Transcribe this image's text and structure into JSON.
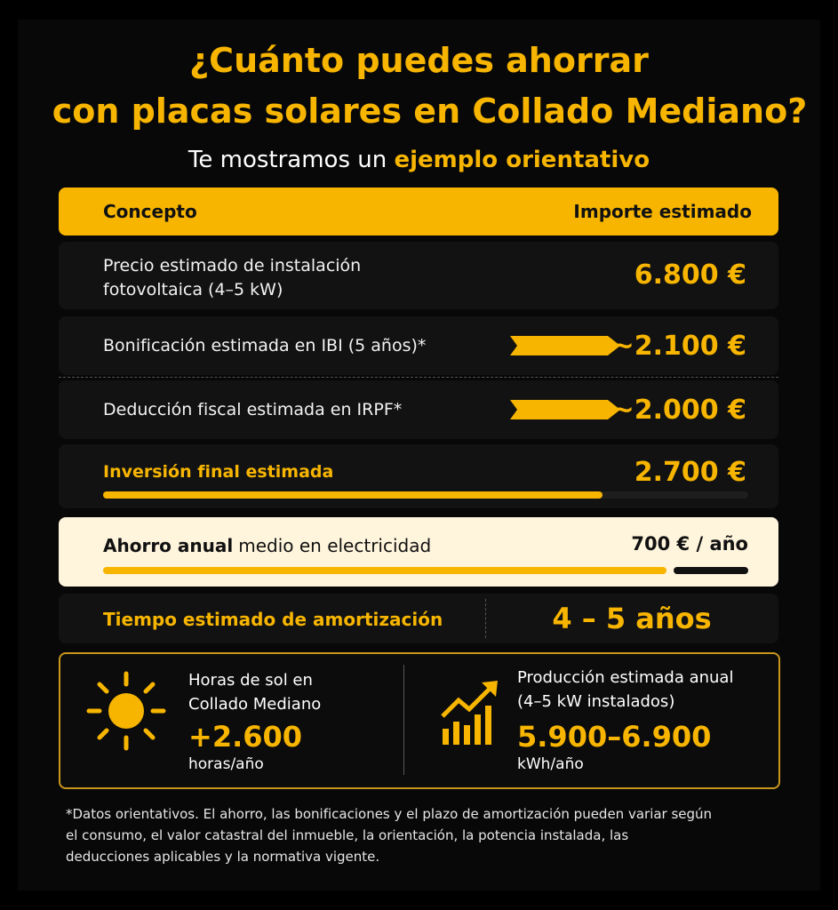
{
  "header": {
    "title_line1": "¿Cuánto puedes ahorrar",
    "title_line2": "con placas solares en Collado Mediano?",
    "subtitle": "Te mostramos un",
    "subtitle_highlight": "ejemplo orientativo"
  },
  "table": {
    "columns": [
      "Concepto",
      "Importe estimado"
    ],
    "rows": [
      [
        "Precio estimado de instalación fotovoltaica (4–5 kW)",
        "6.800 €"
      ],
      [
        "Bonificación estimada en IBI (5 años)*",
        "~2.100 €"
      ],
      [
        "Deducción fiscal estimada en IRPF*",
        "~2.000 €"
      ],
      [
        "Inversión final estimada",
        "2.700 €"
      ]
    ]
  },
  "savings": {
    "label_bold": "Ahorro anual",
    "label": "medio en electricidad",
    "value": "700 € / año"
  },
  "payback": {
    "label": "Tiempo estimado de amortización",
    "value": "4 – 5 años"
  },
  "stats": [
    {
      "label": "Horas de sol en Collado Mediano",
      "value": "+2.600",
      "unit": "horas/año"
    },
    {
      "label": "Producción estimada anual",
      "sublabel": "(4–5 kW instalados)",
      "value": "5.900–6.900",
      "unit": "kWh/año"
    }
  ],
  "footnote": "*Datos orientativos. El ahorro, las bonificaciones y el plazo de amortización pueden variar según el consumo, el valor catastral del inmueble, la orientación, la potencia instalada, las deducciones aplicables y la normativa vigente."
}
